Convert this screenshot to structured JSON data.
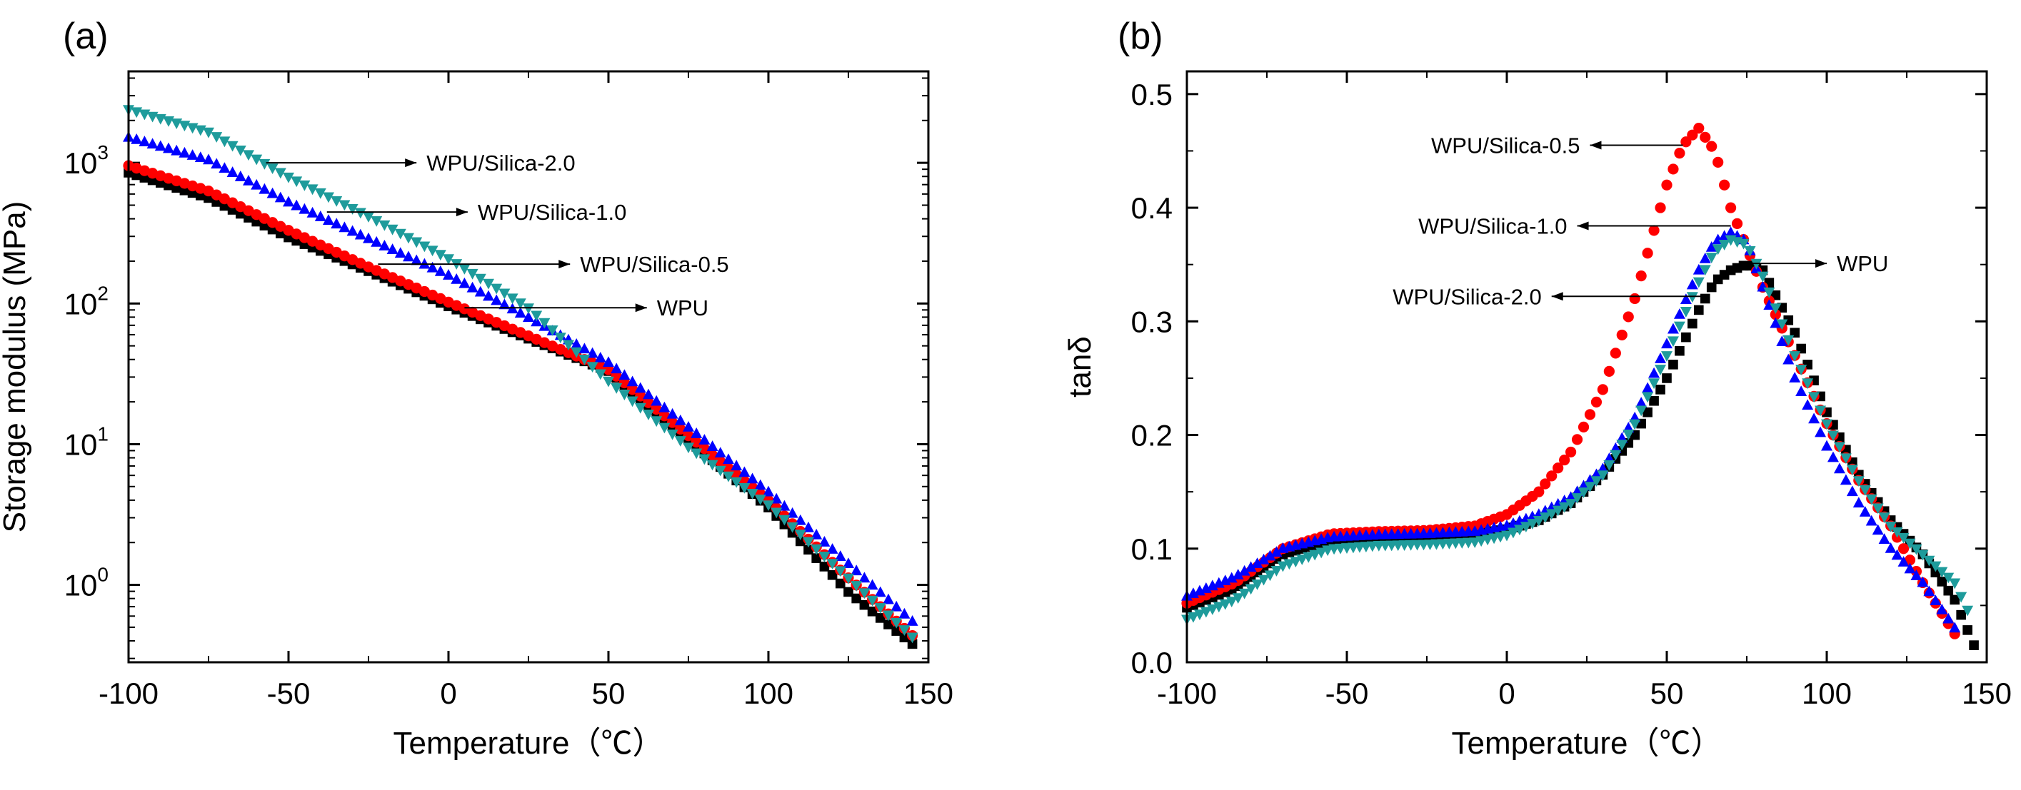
{
  "figure": {
    "panels": [
      "(a)",
      "(b)"
    ]
  },
  "colors": {
    "WPU": "#000000",
    "WPU/Silica-0.5": "#ff0000",
    "WPU/Silica-1.0": "#0000ff",
    "WPU/Silica-2.0": "#1e9b9b"
  },
  "chart_data": [
    {
      "panel": "(a)",
      "type": "scatter",
      "title": "",
      "xlabel": "Temperature（℃）",
      "ylabel": "Storage modulus (MPa)",
      "yscale": "log",
      "xlim": [
        -100,
        150
      ],
      "ylim_exp": [
        -0.55,
        3.65
      ],
      "xticks": [
        "-100",
        "-50",
        "0",
        "50",
        "100",
        "150"
      ],
      "yticks": [
        {
          "base": "10",
          "exp": "0",
          "value": 0
        },
        {
          "base": "10",
          "exp": "1",
          "value": 1
        },
        {
          "base": "10",
          "exp": "2",
          "value": 2
        },
        {
          "base": "10",
          "exp": "3",
          "value": 3
        }
      ],
      "series": [
        {
          "name": "WPU",
          "marker": "square",
          "x": [
            -100,
            -75,
            -50,
            -25,
            0,
            25,
            50,
            75,
            100,
            125,
            145
          ],
          "log10y": [
            2.93,
            2.75,
            2.47,
            2.23,
            1.98,
            1.75,
            1.52,
            1.03,
            0.55,
            -0.05,
            -0.42
          ]
        },
        {
          "name": "WPU/Silica-0.5",
          "marker": "circle",
          "x": [
            -100,
            -75,
            -50,
            -25,
            0,
            25,
            50,
            75,
            100,
            125,
            145
          ],
          "log10y": [
            2.98,
            2.8,
            2.52,
            2.26,
            2.01,
            1.77,
            1.53,
            1.06,
            0.6,
            0.05,
            -0.36
          ]
        },
        {
          "name": "WPU/Silica-1.0",
          "marker": "triangle-up",
          "x": [
            -100,
            -75,
            -50,
            -25,
            0,
            25,
            50,
            75,
            100,
            125,
            145
          ],
          "log10y": [
            3.18,
            3.02,
            2.72,
            2.46,
            2.2,
            1.9,
            1.58,
            1.12,
            0.66,
            0.15,
            -0.26
          ]
        },
        {
          "name": "WPU/Silica-2.0",
          "marker": "triangle-down",
          "x": [
            -100,
            -75,
            -50,
            -25,
            0,
            25,
            50,
            75,
            100,
            125,
            145
          ],
          "log10y": [
            3.38,
            3.22,
            2.9,
            2.62,
            2.32,
            1.97,
            1.45,
            0.98,
            0.57,
            0.05,
            -0.37
          ]
        }
      ],
      "annotations": [
        {
          "text": "WPU/Silica-2.0",
          "series": "WPU/Silica-2.0",
          "x_from": -57,
          "x_to": -10,
          "log10y": 3.0
        },
        {
          "text": "WPU/Silica-1.0",
          "series": "WPU/Silica-1.0",
          "x_from": -38,
          "x_to": 6,
          "log10y": 2.65
        },
        {
          "text": "WPU/Silica-0.5",
          "series": "WPU/Silica-0.5",
          "x_from": -22,
          "x_to": 38,
          "log10y": 2.28
        },
        {
          "text": "WPU",
          "series": "WPU",
          "x_from": 5,
          "x_to": 62,
          "log10y": 1.97
        }
      ]
    },
    {
      "panel": "(b)",
      "type": "scatter",
      "title": "",
      "xlabel": "Temperature（℃）",
      "ylabel": "tanδ",
      "yscale": "linear",
      "xlim": [
        -100,
        150
      ],
      "ylim": [
        0.0,
        0.52
      ],
      "xticks": [
        "-100",
        "-50",
        "0",
        "50",
        "100",
        "150"
      ],
      "yticks": [
        "0.0",
        "0.1",
        "0.2",
        "0.3",
        "0.4",
        "0.5"
      ],
      "series": [
        {
          "name": "WPU",
          "marker": "square",
          "x": [
            -100,
            -85,
            -70,
            -55,
            -40,
            -25,
            -10,
            0,
            10,
            20,
            30,
            40,
            50,
            60,
            65,
            70,
            75,
            80,
            90,
            100,
            110,
            120,
            130,
            140,
            146
          ],
          "y": [
            0.048,
            0.065,
            0.095,
            0.107,
            0.11,
            0.111,
            0.113,
            0.117,
            0.125,
            0.14,
            0.165,
            0.2,
            0.25,
            0.31,
            0.335,
            0.345,
            0.35,
            0.345,
            0.29,
            0.22,
            0.165,
            0.125,
            0.095,
            0.055,
            0.015
          ]
        },
        {
          "name": "WPU/Silica-0.5",
          "marker": "circle",
          "x": [
            -100,
            -85,
            -70,
            -55,
            -40,
            -25,
            -10,
            0,
            10,
            20,
            30,
            40,
            45,
            50,
            55,
            60,
            65,
            70,
            80,
            90,
            100,
            110,
            120,
            130,
            140
          ],
          "y": [
            0.052,
            0.07,
            0.1,
            0.113,
            0.115,
            0.116,
            0.12,
            0.13,
            0.15,
            0.185,
            0.24,
            0.32,
            0.37,
            0.42,
            0.455,
            0.47,
            0.45,
            0.4,
            0.33,
            0.27,
            0.21,
            0.16,
            0.12,
            0.07,
            0.025
          ]
        },
        {
          "name": "WPU/Silica-1.0",
          "marker": "triangle-up",
          "x": [
            -100,
            -85,
            -70,
            -55,
            -40,
            -25,
            -10,
            0,
            10,
            20,
            30,
            40,
            50,
            60,
            65,
            70,
            75,
            80,
            90,
            100,
            110,
            120,
            130,
            140
          ],
          "y": [
            0.058,
            0.075,
            0.1,
            0.11,
            0.112,
            0.113,
            0.115,
            0.12,
            0.13,
            0.145,
            0.17,
            0.215,
            0.28,
            0.345,
            0.37,
            0.378,
            0.37,
            0.33,
            0.25,
            0.19,
            0.14,
            0.1,
            0.07,
            0.03
          ]
        },
        {
          "name": "WPU/Silica-2.0",
          "marker": "triangle-down",
          "x": [
            -100,
            -85,
            -70,
            -55,
            -40,
            -25,
            -10,
            0,
            10,
            20,
            30,
            40,
            50,
            60,
            65,
            70,
            75,
            80,
            90,
            100,
            110,
            120,
            130,
            140,
            145
          ],
          "y": [
            0.038,
            0.055,
            0.085,
            0.1,
            0.103,
            0.104,
            0.106,
            0.112,
            0.125,
            0.14,
            0.165,
            0.21,
            0.27,
            0.335,
            0.362,
            0.372,
            0.368,
            0.34,
            0.27,
            0.21,
            0.16,
            0.12,
            0.095,
            0.07,
            0.04
          ]
        }
      ],
      "annotations": [
        {
          "text": "WPU/Silica-0.5",
          "series": "WPU/Silica-0.5",
          "x_from": 55,
          "x_to": 26,
          "y": 0.455
        },
        {
          "text": "WPU/Silica-1.0",
          "series": "WPU/Silica-1.0",
          "x_from": 70,
          "x_to": 22,
          "y": 0.384
        },
        {
          "text": "WPU",
          "series": "WPU",
          "x_from": 74,
          "x_to": 100,
          "y": 0.351
        },
        {
          "text": "WPU/Silica-2.0",
          "series": "WPU/Silica-2.0",
          "x_from": 63,
          "x_to": 14,
          "y": 0.322
        }
      ]
    }
  ]
}
